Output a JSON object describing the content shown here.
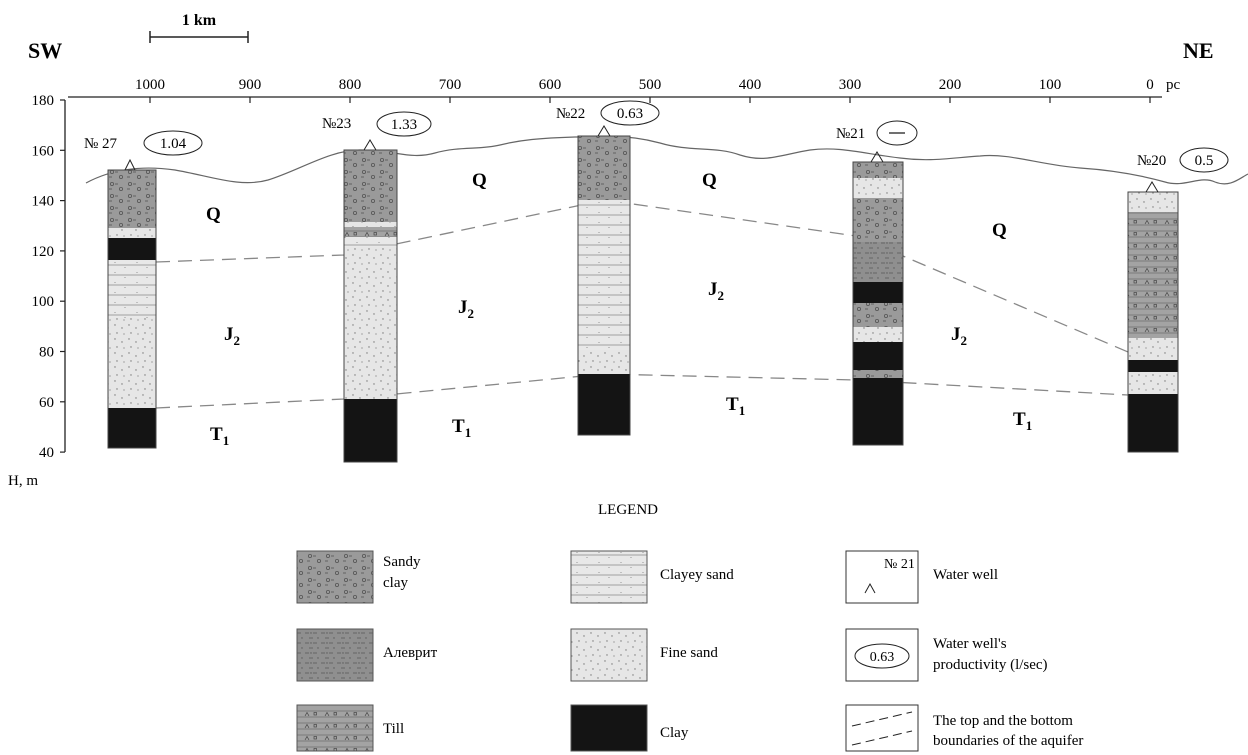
{
  "header": {
    "left_direction": "SW",
    "right_direction": "NE",
    "scale_bar_label": "1 km",
    "unit_label": "pc"
  },
  "top_axis": {
    "ticks": [
      "1000",
      "900",
      "800",
      "700",
      "600",
      "500",
      "400",
      "300",
      "200",
      "100",
      "0"
    ]
  },
  "left_axis": {
    "label": "H, m",
    "ticks": [
      "180",
      "160",
      "140",
      "120",
      "100",
      "80",
      "60",
      "40"
    ]
  },
  "wells": [
    {
      "id": "№ 27",
      "productivity": "1.04"
    },
    {
      "id": "№23",
      "productivity": "1.33"
    },
    {
      "id": "№22",
      "productivity": "0.63"
    },
    {
      "id": "№21",
      "productivity": ""
    },
    {
      "id": "№20",
      "productivity": "0.5"
    }
  ],
  "layer_labels": {
    "q": "Q",
    "j": "J",
    "j_sub": "2",
    "t": "T",
    "t_sub": "1"
  },
  "legend": {
    "title": "LEGEND",
    "items": [
      {
        "key": "sandy_clay",
        "label_lines": [
          "Sandy",
          "clay"
        ]
      },
      {
        "key": "alevrit",
        "label_lines": [
          "Алеврит"
        ]
      },
      {
        "key": "till",
        "label_lines": [
          "Till"
        ]
      },
      {
        "key": "clayey_sand",
        "label_lines": [
          "Clayey sand"
        ]
      },
      {
        "key": "fine_sand",
        "label_lines": [
          "Fine sand"
        ]
      },
      {
        "key": "clay",
        "label_lines": [
          "Clay"
        ]
      },
      {
        "key": "water_well",
        "label_lines": [
          "Water well"
        ],
        "sample_text": "№ 21"
      },
      {
        "key": "productivity",
        "label_lines": [
          "Water well's",
          "productivity (l/sec)"
        ],
        "sample_text": "0.63"
      },
      {
        "key": "boundaries",
        "label_lines": [
          "The top and the bottom",
          "boundaries of the aquifer"
        ]
      }
    ]
  }
}
